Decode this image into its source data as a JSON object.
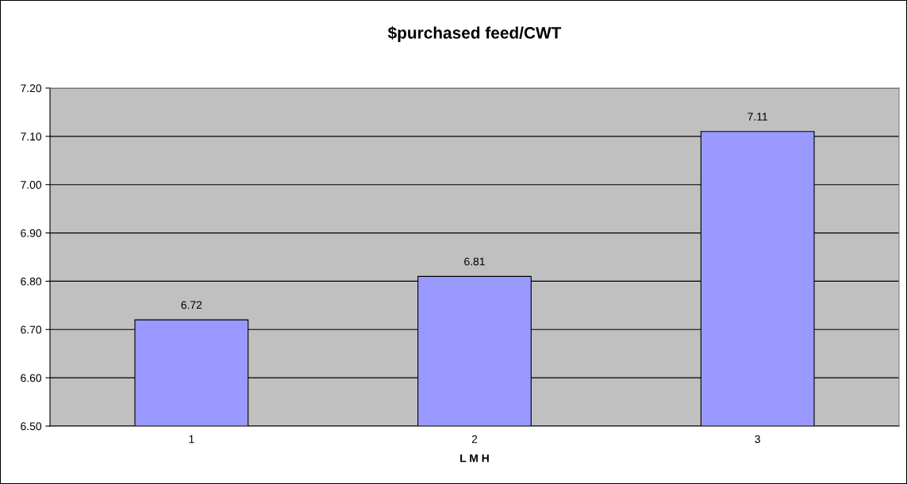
{
  "chart_data": {
    "type": "bar",
    "title": "$purchased feed/CWT",
    "xlabel": "L M H",
    "categories": [
      "1",
      "2",
      "3"
    ],
    "values": [
      6.72,
      6.81,
      7.11
    ],
    "color": "#9999ff",
    "ylim": [
      6.5,
      7.2
    ],
    "yticks": [
      {
        "value": 6.5,
        "label": "6.50"
      },
      {
        "value": 6.6,
        "label": "6.60"
      },
      {
        "value": 6.7,
        "label": "6.70"
      },
      {
        "value": 6.8,
        "label": "6.80"
      },
      {
        "value": 6.9,
        "label": "6.90"
      },
      {
        "value": 7.0,
        "label": "7.00"
      },
      {
        "value": 7.1,
        "label": "7.10"
      },
      {
        "value": 7.2,
        "label": "7.20"
      }
    ],
    "grid": "y",
    "legend": false,
    "value_labels": [
      "6.72",
      "6.81",
      "7.11"
    ]
  }
}
